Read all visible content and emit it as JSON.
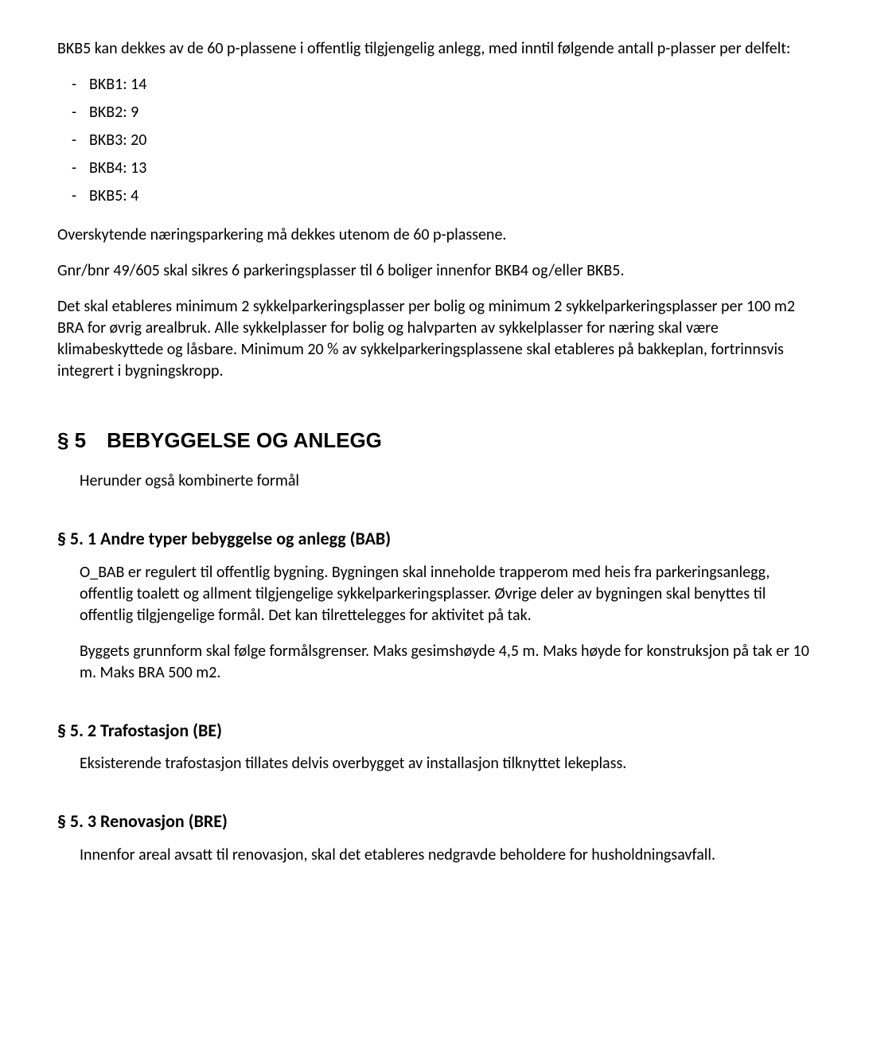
{
  "intro": {
    "p1": "BKB5 kan dekkes av de 60 p-plassene i offentlig tilgjengelig anlegg, med inntil følgende antall p-plasser per delfelt:",
    "bullets": [
      "BKB1: 14",
      "BKB2: 9",
      "BKB3: 20",
      "BKB4: 13",
      "BKB5: 4"
    ],
    "p2": "Overskytende næringsparkering må dekkes utenom de 60 p-plassene.",
    "p3": "Gnr/bnr 49/605 skal sikres 6 parkeringsplasser til 6 boliger innenfor BKB4 og/eller BKB5.",
    "p4": "Det skal etableres minimum 2 sykkelparkeringsplasser per bolig og minimum 2 sykkelparkeringsplasser per 100 m2 BRA for øvrig arealbruk. Alle sykkelplasser for bolig og halvparten av sykkelplasser for næring skal være klimabeskyttede og låsbare. Minimum 20 % av sykkelparkeringsplassene skal etableres på bakkeplan, fortrinnsvis integrert i bygningskropp."
  },
  "section5": {
    "heading": "§ 5 BEBYGGELSE OG ANLEGG",
    "intro": "Herunder også kombinerte formål"
  },
  "s5_1": {
    "heading": "§ 5. 1  Andre typer bebyggelse og anlegg (BAB)",
    "p1": "O_BAB er regulert til offentlig bygning. Bygningen skal inneholde trapperom med heis fra parkeringsanlegg, offentlig toalett og allment tilgjengelige sykkelparkeringsplasser. Øvrige deler av bygningen skal benyttes til offentlig tilgjengelige formål. Det kan tilrettelegges for aktivitet på tak.",
    "p2": "Byggets grunnform skal følge formålsgrenser. Maks gesimshøyde 4,5 m. Maks høyde for konstruksjon på tak er 10 m. Maks BRA 500 m2."
  },
  "s5_2": {
    "heading": "§ 5. 2  Trafostasjon (BE)",
    "p1": "Eksisterende trafostasjon tillates delvis overbygget av installasjon tilknyttet lekeplass."
  },
  "s5_3": {
    "heading": "§ 5. 3  Renovasjon (BRE)",
    "p1": "Innenfor areal avsatt til renovasjon, skal det etableres nedgravde beholdere for husholdningsavfall."
  }
}
